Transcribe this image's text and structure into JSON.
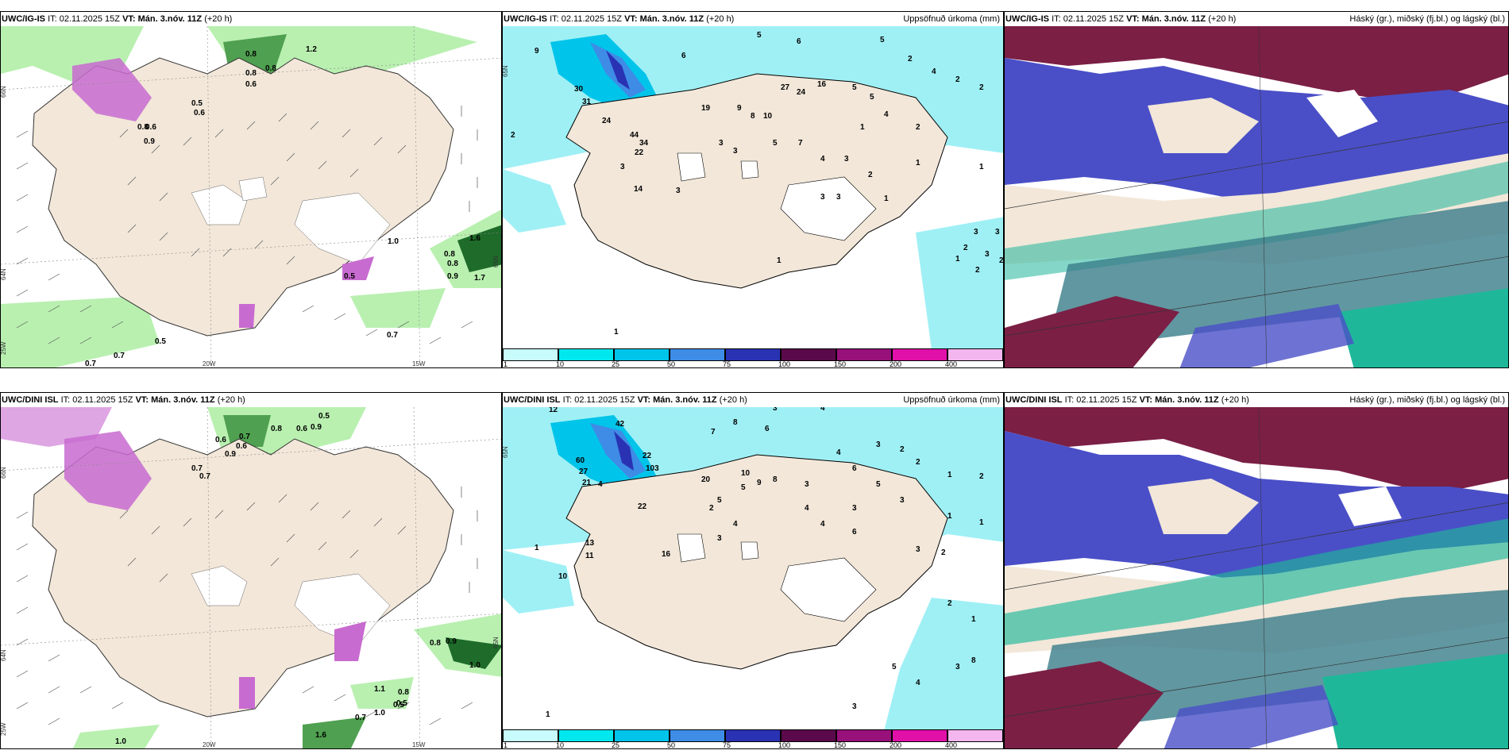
{
  "rows": [
    {
      "model": "UWC/IG-IS",
      "it_label": "IT:",
      "it_value": "02.11.2025 15Z",
      "vt_label": "VT:",
      "vt_value": "Mán. 3.nóv. 11Z",
      "lead": "(+20 h)",
      "map1_labels": [
        "0.8",
        "1.2",
        "0.8",
        "0.8",
        "0.6",
        "0.5",
        "0.6",
        "0.8",
        "0.9",
        "0.6",
        "1.0",
        "0.8",
        "0.8",
        "0.9",
        "0.5",
        "0.7",
        "0.7",
        "0.7",
        "0.5",
        "1.6",
        "1.7"
      ],
      "map1_axis": [
        "66N",
        "64N",
        "25W",
        "20W",
        "15W",
        "65N"
      ],
      "precip_labels": [
        "9",
        "5",
        "6",
        "5",
        "2",
        "6",
        "4",
        "1",
        "2",
        "2",
        "2",
        "3",
        "30",
        "31",
        "24",
        "44",
        "34",
        "22",
        "3",
        "14",
        "3",
        "19",
        "9",
        "8",
        "10",
        "27",
        "24",
        "16",
        "5",
        "5",
        "4",
        "1",
        "2",
        "5",
        "7",
        "4",
        "3",
        "2",
        "1",
        "1",
        "3",
        "3",
        "3",
        "3",
        "1",
        "2",
        "1",
        "1",
        "2",
        "3",
        "3",
        "2"
      ],
      "precip_axis": [
        "65N"
      ]
    },
    {
      "model": "UWC/DINI ISL",
      "it_label": "IT:",
      "it_value": "02.11.2025 15Z",
      "vt_label": "VT:",
      "vt_value": "Mán. 3.nóv. 11Z",
      "lead": "(+20 h)",
      "map1_labels": [
        "0.5",
        "1.0",
        "0.6",
        "0.7",
        "0.8",
        "0.6",
        "0.9",
        "0.7",
        "0.5",
        "0.7",
        "0.8",
        "0.9",
        "1.0",
        "1.6",
        "1.1",
        "0.8",
        "0.5",
        "1.0",
        "0.7",
        "0.9",
        "0.6"
      ],
      "map1_axis": [
        "66N",
        "64N",
        "25W",
        "20W",
        "15W",
        "65N"
      ],
      "precip_labels": [
        "12",
        "8",
        "3",
        "4",
        "7",
        "6",
        "3",
        "2",
        "2",
        "1",
        "2",
        "20",
        "10",
        "9",
        "8",
        "5",
        "3",
        "4",
        "6",
        "5",
        "3",
        "3",
        "1",
        "1",
        "4",
        "4",
        "4",
        "6",
        "3",
        "2",
        "42",
        "22",
        "103",
        "60",
        "27",
        "21",
        "13",
        "11",
        "16",
        "10",
        "22",
        "1",
        "2",
        "5",
        "4",
        "3",
        "2",
        "1",
        "8",
        "3",
        "5",
        "4",
        "1",
        "3"
      ],
      "precip_axis": [
        "65N"
      ]
    }
  ],
  "precip_title": "Uppsöfnuð úrkoma (mm)",
  "cloud_title": "Háský (gr.), miðský (fj.bl.) og lágský (bl.)",
  "colorbar": {
    "ticks": [
      "1",
      "10",
      "25",
      "50",
      "75",
      "100",
      "150",
      "200",
      "400"
    ],
    "colors": [
      "#c8fbfb",
      "#00e8ee",
      "#00c4ea",
      "#3e8ce6",
      "#2a32b4",
      "#5a0a4a",
      "#98107a",
      "#e010a8",
      "#f4b6ee"
    ]
  },
  "colors": {
    "land": "#f2e7d9",
    "sea_precip": "#9ff0f5",
    "green_light": "#b9f0b0",
    "green_dark": "#1e6b2a",
    "magenta": "#c86bd0",
    "maroon": "#7b1f45",
    "blue": "#4a4fc7",
    "teal": "#1fb79a"
  }
}
